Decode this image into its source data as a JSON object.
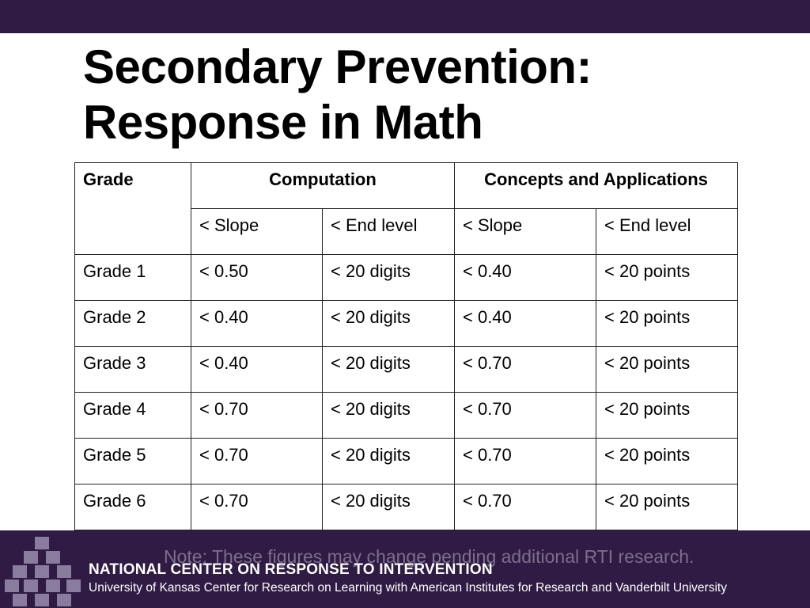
{
  "slide": {
    "title_line1": "Secondary Prevention:",
    "title_line2": "Response in Math"
  },
  "table": {
    "header": {
      "grade": "Grade",
      "computation": "Computation",
      "concepts": "Concepts and Applications",
      "slope": "< Slope",
      "end_level": "< End level"
    },
    "rows": [
      [
        "Grade 1",
        "< 0.50",
        "< 20 digits",
        "< 0.40",
        "< 20 points"
      ],
      [
        "Grade 2",
        "< 0.40",
        "< 20 digits",
        "< 0.40",
        "< 20 points"
      ],
      [
        "Grade 3",
        "< 0.40",
        "< 20 digits",
        "< 0.70",
        "< 20 points"
      ],
      [
        "Grade 4",
        "< 0.70",
        "< 20 digits",
        "< 0.70",
        "< 20 points"
      ],
      [
        "Grade 5",
        "< 0.70",
        "< 20 digits",
        "< 0.70",
        "< 20 points"
      ],
      [
        "Grade 6",
        "< 0.70",
        "< 20 digits",
        "< 0.70",
        "< 20 points"
      ]
    ]
  },
  "note": "Note: These figures may change pending additional RTI research.",
  "footer": {
    "org_name": "NATIONAL CENTER ON RESPONSE TO INTERVENTION",
    "org_sub": "University of Kansas Center for Research on Learning with American Institutes for Research and Vanderbilt University",
    "logo_icon": "stacked-cubes-logo-icon"
  },
  "colors": {
    "brand_purple": "#2f1b44",
    "note_gray": "#7d6e8e",
    "cube_light": "#9b8db0",
    "cube_mid": "#7a6a93"
  }
}
